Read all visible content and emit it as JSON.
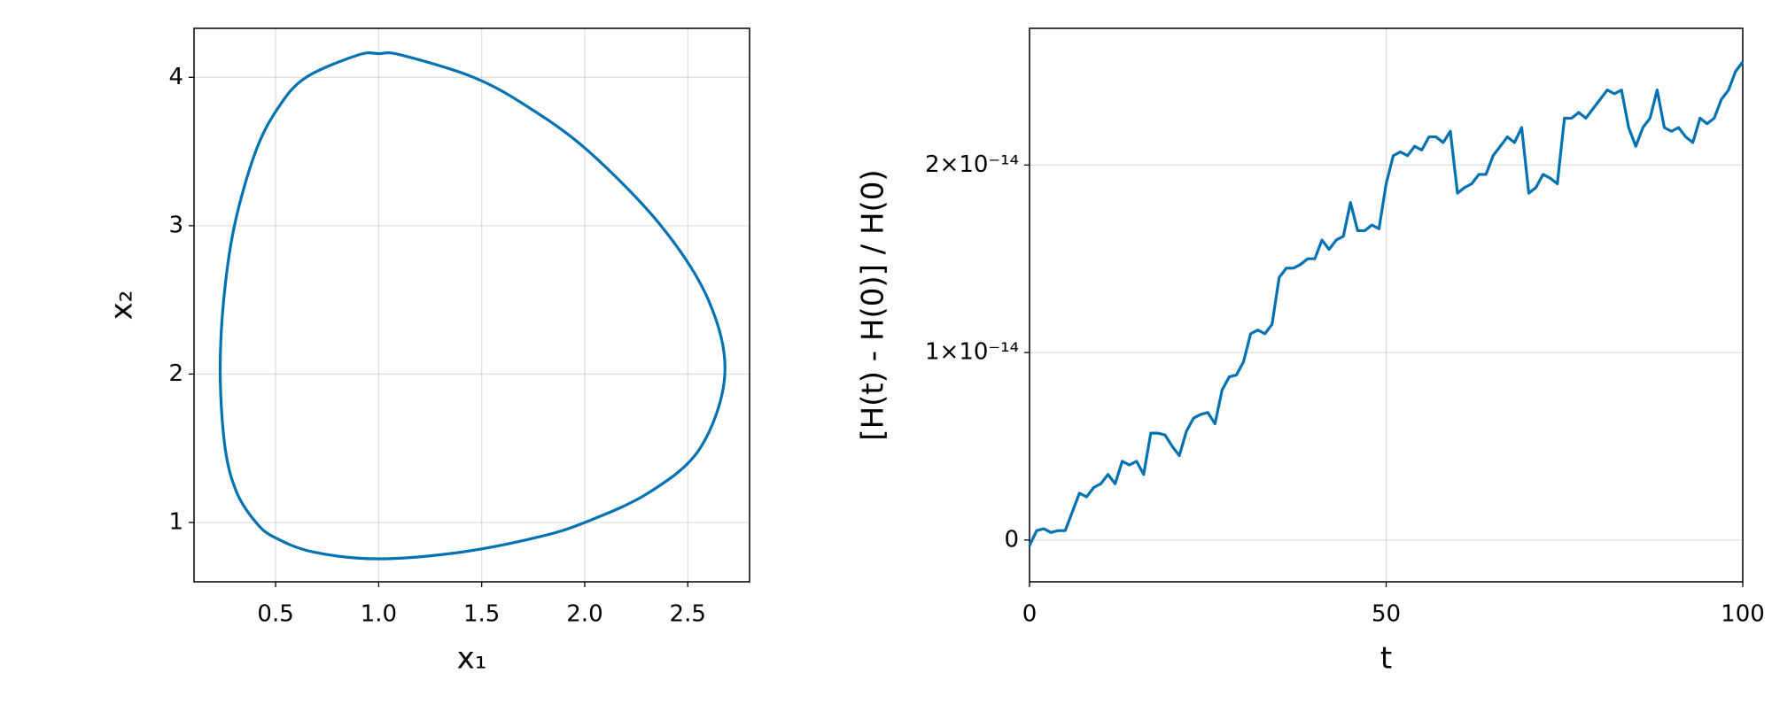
{
  "chart_data": [
    {
      "type": "phase",
      "xlabel": "x₁",
      "ylabel": "x₂",
      "color": "#0072b2",
      "grid": true,
      "x": [
        1.0,
        1.11,
        1.46,
        1.725,
        2.02,
        2.37,
        2.6,
        2.68,
        2.56,
        2.31,
        2.0,
        1.77,
        1.4,
        1.0,
        0.685,
        0.494,
        0.405,
        0.312,
        0.255,
        0.231,
        0.248,
        0.3,
        0.403,
        0.515,
        0.648,
        0.9
      ],
      "y": [
        4.16,
        4.15,
        4.0,
        3.8,
        3.5,
        3.0,
        2.5,
        2.0,
        1.5,
        1.2,
        1.0,
        0.9,
        0.8,
        0.755,
        0.8,
        0.9,
        1.0,
        1.2,
        1.5,
        2.0,
        2.5,
        3.0,
        3.5,
        3.8,
        4.0,
        4.15
      ],
      "xlim": [
        0.104,
        2.8
      ],
      "ylim": [
        0.6,
        4.33
      ],
      "xticks": [
        0.5,
        {
          "value": 1,
          "label": "1.0"
        },
        1.5,
        {
          "value": 2,
          "label": "2.0"
        },
        2.5
      ],
      "yticks": [
        1,
        2,
        3,
        4
      ]
    },
    {
      "type": "line",
      "xlabel": "t",
      "ylabel": "[H(t) - H(0)] / H(0)",
      "color": "#0072b2",
      "grid": true,
      "x": [
        0,
        1,
        2,
        3,
        4,
        5,
        6,
        7,
        8,
        9,
        10,
        11,
        12,
        13,
        14,
        15,
        16,
        17,
        18,
        19,
        20,
        21,
        22,
        23,
        24,
        25,
        26,
        27,
        28,
        29,
        30,
        31,
        32,
        33,
        34,
        35,
        36,
        37,
        38,
        39,
        40,
        41,
        42,
        43,
        44,
        45,
        46,
        47,
        48,
        49,
        50,
        51,
        52,
        53,
        54,
        55,
        56,
        57,
        58,
        59,
        60,
        61,
        62,
        63,
        64,
        65,
        66,
        67,
        68,
        69,
        70,
        71,
        72,
        73,
        74,
        75,
        76,
        77,
        78,
        79,
        80,
        81,
        82,
        83,
        84,
        85,
        86,
        87,
        88,
        89,
        90,
        91,
        92,
        93,
        94,
        95,
        96,
        97,
        98,
        99,
        100
      ],
      "values": [
        -3e-16,
        5e-16,
        6e-16,
        4e-16,
        5e-16,
        5e-16,
        1.5e-15,
        2.5e-15,
        2.3e-15,
        2.8e-15,
        3e-15,
        3.5e-15,
        3e-15,
        4.2e-15,
        4e-15,
        4.2e-15,
        3.5e-15,
        5.7e-15,
        5.7e-15,
        5.6e-15,
        5e-15,
        4.5e-15,
        5.8e-15,
        6.5e-15,
        6.7e-15,
        6.8e-15,
        6.2e-15,
        8e-15,
        8.7e-15,
        8.8e-15,
        9.5e-15,
        1.1e-14,
        1.12e-14,
        1.1e-14,
        1.15e-14,
        1.4e-14,
        1.45e-14,
        1.45e-14,
        1.47e-14,
        1.5e-14,
        1.5e-14,
        1.6e-14,
        1.55e-14,
        1.6e-14,
        1.62e-14,
        1.8e-14,
        1.65e-14,
        1.65e-14,
        1.68e-14,
        1.66e-14,
        1.9e-14,
        2.05e-14,
        2.07e-14,
        2.05e-14,
        2.1e-14,
        2.08e-14,
        2.15e-14,
        2.15e-14,
        2.12e-14,
        2.18e-14,
        1.85e-14,
        1.88e-14,
        1.9e-14,
        1.95e-14,
        1.95e-14,
        2.05e-14,
        2.1e-14,
        2.15e-14,
        2.12e-14,
        2.2e-14,
        1.85e-14,
        1.88e-14,
        1.95e-14,
        1.93e-14,
        1.9e-14,
        2.25e-14,
        2.25e-14,
        2.28e-14,
        2.25e-14,
        2.3e-14,
        2.35e-14,
        2.4e-14,
        2.38e-14,
        2.4e-14,
        2.2e-14,
        2.1e-14,
        2.2e-14,
        2.25e-14,
        2.4e-14,
        2.2e-14,
        2.18e-14,
        2.2e-14,
        2.15e-14,
        2.12e-14,
        2.25e-14,
        2.22e-14,
        2.25e-14,
        2.35e-14,
        2.4e-14,
        2.5e-14,
        2.55e-14
      ],
      "xlim": [
        0,
        100
      ],
      "ylim": [
        -2.23e-15,
        2.729e-14
      ],
      "xticks": [
        0,
        50,
        100
      ],
      "yticks": [
        0,
        {
          "value": 1e-14,
          "label": "1×10⁻¹⁴"
        },
        {
          "value": 2e-14,
          "label": "2×10⁻¹⁴"
        }
      ]
    }
  ]
}
